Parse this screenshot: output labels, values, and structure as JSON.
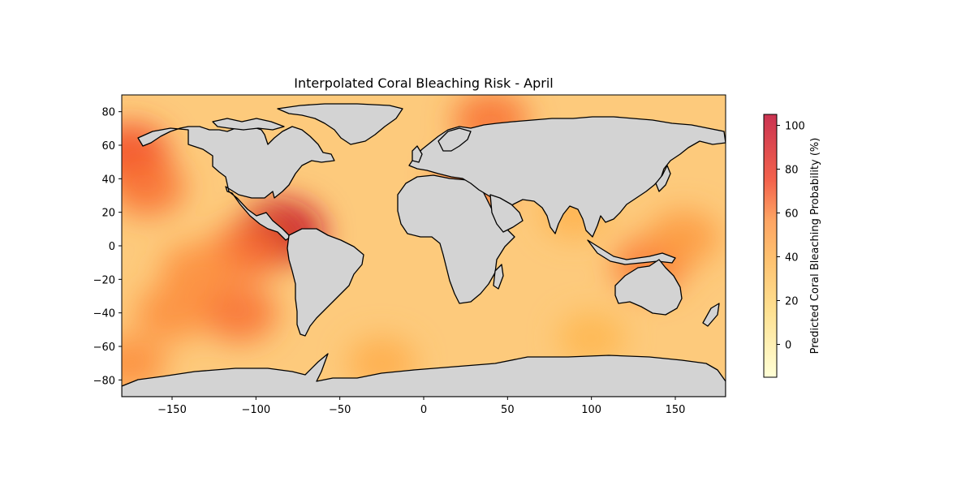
{
  "chart_data": {
    "type": "heatmap",
    "title": "Interpolated Coral Bleaching Risk - April",
    "x_ticks": [
      "−150",
      "−100",
      "−50",
      "0",
      "50",
      "100",
      "150"
    ],
    "x_tick_values": [
      -150,
      -100,
      -50,
      0,
      50,
      100,
      150
    ],
    "y_ticks": [
      "80",
      "60",
      "40",
      "20",
      "0",
      "−20",
      "−40",
      "−60",
      "−80"
    ],
    "y_tick_values": [
      80,
      60,
      40,
      20,
      0,
      -20,
      -40,
      -60,
      -80
    ],
    "xlim": [
      -180,
      180
    ],
    "ylim": [
      -90,
      90
    ],
    "colorbar": {
      "label": "Predicted Coral Bleaching Probability (%)",
      "ticks": [
        "0",
        "20",
        "40",
        "60",
        "80",
        "100"
      ],
      "tick_values": [
        0,
        20,
        40,
        60,
        80,
        100
      ],
      "range": [
        -15,
        105
      ],
      "colormap": "YlOrRd",
      "alpha": 0.75
    },
    "hotspots": [
      {
        "lon": -175,
        "lat": 55,
        "value": 72
      },
      {
        "lon": -165,
        "lat": 35,
        "value": 62
      },
      {
        "lon": -85,
        "lat": 8,
        "value": 95
      },
      {
        "lon": -105,
        "lat": -3,
        "value": 62
      },
      {
        "lon": -135,
        "lat": -15,
        "value": 55
      },
      {
        "lon": -110,
        "lat": -40,
        "value": 62
      },
      {
        "lon": -150,
        "lat": -40,
        "value": 55
      },
      {
        "lon": 30,
        "lat": 38,
        "value": 62
      },
      {
        "lon": 40,
        "lat": 75,
        "value": 62
      },
      {
        "lon": 135,
        "lat": -12,
        "value": 60
      },
      {
        "lon": 155,
        "lat": 5,
        "value": 50
      },
      {
        "lon": -25,
        "lat": -70,
        "value": 42
      },
      {
        "lon": -175,
        "lat": -70,
        "value": 55
      },
      {
        "lon": 90,
        "lat": 20,
        "value": 40
      },
      {
        "lon": 100,
        "lat": -55,
        "value": 38
      }
    ],
    "land_color": "#d3d3d3",
    "ocean_base_value": 30
  }
}
